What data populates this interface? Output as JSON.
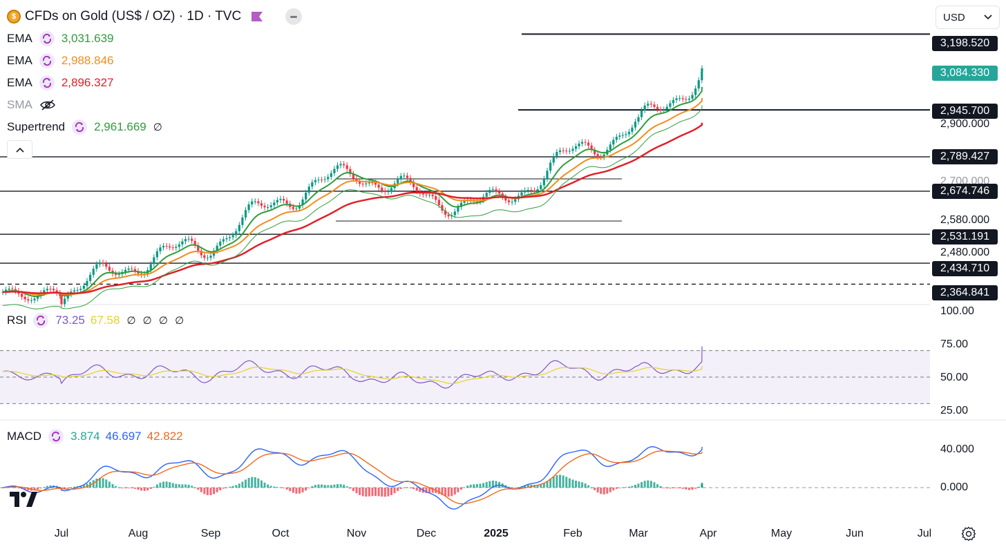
{
  "header": {
    "title": "CFDs on Gold (US$ / OZ) · 1D · TVC",
    "currency": "USD"
  },
  "legend": {
    "ema1": {
      "name": "EMA",
      "value": "3,031.639",
      "color": "#2e9c3b"
    },
    "ema2": {
      "name": "EMA",
      "value": "2,988.846",
      "color": "#f28c1c"
    },
    "ema3": {
      "name": "EMA",
      "value": "2,896.327",
      "color": "#e0202a"
    },
    "sma": {
      "name": "SMA"
    },
    "supertrend": {
      "name": "Supertrend",
      "value": "2,961.669",
      "extra": "∅",
      "color": "#2e9c3b"
    },
    "rsi": {
      "name": "RSI",
      "value": "73.25",
      "value2": "67.58",
      "extra": "∅ ∅ ∅ ∅",
      "color": "#7e57c2",
      "color2": "#e6d324"
    },
    "macd": {
      "name": "MACD",
      "value": "3.874",
      "value2": "46.697",
      "value3": "42.822",
      "color": "#26a69a",
      "color2": "#2962ff",
      "color3": "#f0691c"
    }
  },
  "price_tags": [
    {
      "label": "3,198.520",
      "kind": "level"
    },
    {
      "label": "3,084.330",
      "kind": "current"
    },
    {
      "label": "2,945.700",
      "kind": "level"
    },
    {
      "label": "2,789.427",
      "kind": "level"
    },
    {
      "label": "2,674.746",
      "kind": "level"
    },
    {
      "label": "2,531.191",
      "kind": "level"
    },
    {
      "label": "2,434.710",
      "kind": "level"
    },
    {
      "label": "2,364.841",
      "kind": "level"
    }
  ],
  "price_axis": [
    "2,900.000",
    "2,700.000",
    "2,580.000",
    "2,480.000"
  ],
  "rsi_axis": [
    "100.00",
    "75.00",
    "50.00",
    "25.00"
  ],
  "macd_axis": [
    "40.000",
    "0.000"
  ],
  "time_axis": [
    {
      "label": "Jul",
      "bold": false
    },
    {
      "label": "Aug",
      "bold": false
    },
    {
      "label": "Sep",
      "bold": false
    },
    {
      "label": "Oct",
      "bold": false
    },
    {
      "label": "Nov",
      "bold": false
    },
    {
      "label": "Dec",
      "bold": false
    },
    {
      "label": "2025",
      "bold": true
    },
    {
      "label": "Feb",
      "bold": false
    },
    {
      "label": "Mar",
      "bold": false
    },
    {
      "label": "Apr",
      "bold": false
    },
    {
      "label": "May",
      "bold": false
    },
    {
      "label": "Jun",
      "bold": false
    },
    {
      "label": "Jul",
      "bold": false
    }
  ],
  "colors": {
    "up": "#089981",
    "down": "#f23645",
    "current_tag": "#26a69a",
    "level_tag": "#131722"
  },
  "chart_data": {
    "type": "candlestick",
    "symbol": "CFDs on Gold (US$ / OZ)",
    "interval": "1D",
    "approx_close_path": [
      [
        "Jul",
        2330
      ],
      [
        "Aug",
        2440
      ],
      [
        "Sep",
        2500
      ],
      [
        "Oct",
        2650
      ],
      [
        "Nov",
        2740
      ],
      [
        "Dec",
        2650
      ],
      [
        "2025",
        2630
      ],
      [
        "Feb",
        2800
      ],
      [
        "Mar",
        2890
      ],
      [
        "Apr",
        3084
      ]
    ],
    "levels": [
      3198.52,
      2945.7,
      2789.427,
      2674.746,
      2531.191,
      2434.71,
      2364.841
    ],
    "last_close": 3084.33,
    "rsi_last": 73.25,
    "macd_last": 3.874
  }
}
